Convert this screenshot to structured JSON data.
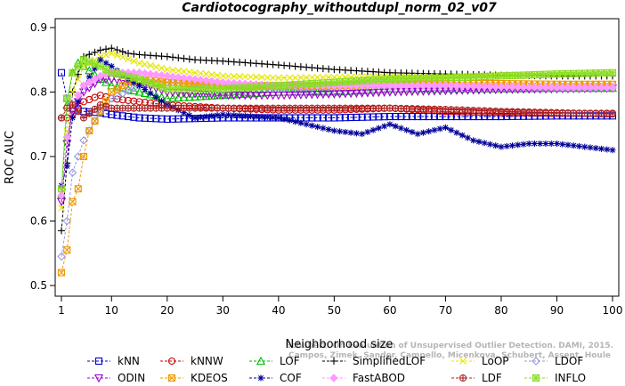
{
  "chart_data": {
    "type": "line",
    "title": "Cardiotocography_withoutdupl_norm_02_v07",
    "xlabel": "Neighborhood size",
    "ylabel": "ROC AUC",
    "xlim": [
      1,
      100
    ],
    "ylim": [
      0.5,
      0.9
    ],
    "xticks": [
      1,
      10,
      20,
      30,
      40,
      50,
      60,
      70,
      80,
      90,
      100
    ],
    "yticks": [
      0.5,
      0.6,
      0.7,
      0.8,
      0.9
    ],
    "grid": false,
    "legend_position": "bottom",
    "watermark": [
      "Schubert: On Evaluation of Unsupervised Outlier Detection. DAMI, 2015.",
      "Campos, Zimek, Sander, Campello, Micenkova, Schubert, Assent, Houle"
    ],
    "series": [
      {
        "name": "kNN",
        "color": "#0000cc",
        "marker": "square",
        "x": [
          1,
          2,
          3,
          5,
          8,
          10,
          15,
          20,
          30,
          40,
          50,
          60,
          70,
          80,
          90,
          100
        ],
        "y": [
          0.83,
          0.79,
          0.775,
          0.77,
          0.768,
          0.765,
          0.76,
          0.758,
          0.76,
          0.76,
          0.76,
          0.762,
          0.762,
          0.762,
          0.763,
          0.763
        ]
      },
      {
        "name": "kNNW",
        "color": "#cc0000",
        "marker": "circle",
        "x": [
          1,
          2,
          3,
          5,
          8,
          10,
          15,
          20,
          30,
          40,
          50,
          60,
          70,
          80,
          90,
          100
        ],
        "y": [
          0.76,
          0.76,
          0.765,
          0.785,
          0.795,
          0.79,
          0.785,
          0.78,
          0.775,
          0.772,
          0.772,
          0.775,
          0.77,
          0.768,
          0.767,
          0.767
        ]
      },
      {
        "name": "LOF",
        "color": "#00bb00",
        "marker": "triangle-up",
        "x": [
          1,
          2,
          3,
          4,
          5,
          8,
          10,
          15,
          20,
          30,
          40,
          50,
          60,
          70,
          80,
          90,
          100
        ],
        "y": [
          0.64,
          0.78,
          0.83,
          0.845,
          0.84,
          0.82,
          0.81,
          0.8,
          0.79,
          0.795,
          0.8,
          0.8,
          0.805,
          0.805,
          0.805,
          0.806,
          0.806
        ]
      },
      {
        "name": "SimplifiedLOF",
        "color": "#000000",
        "marker": "plus",
        "x": [
          1,
          2,
          3,
          5,
          8,
          10,
          13,
          15,
          20,
          25,
          30,
          40,
          50,
          60,
          70,
          80,
          90,
          100
        ],
        "y": [
          0.585,
          0.69,
          0.8,
          0.855,
          0.865,
          0.868,
          0.86,
          0.858,
          0.855,
          0.85,
          0.848,
          0.842,
          0.835,
          0.83,
          0.828,
          0.826,
          0.825,
          0.825
        ]
      },
      {
        "name": "LoOP",
        "color": "#e6e600",
        "marker": "x",
        "x": [
          1,
          2,
          3,
          5,
          8,
          10,
          15,
          20,
          30,
          40,
          50,
          60,
          70,
          80,
          90,
          100
        ],
        "y": [
          0.62,
          0.74,
          0.8,
          0.84,
          0.855,
          0.86,
          0.845,
          0.835,
          0.825,
          0.822,
          0.823,
          0.824,
          0.824,
          0.826,
          0.828,
          0.83
        ]
      },
      {
        "name": "LDOF",
        "color": "#9999dd",
        "marker": "diamond",
        "x": [
          1,
          2,
          3,
          5,
          8,
          10,
          15,
          20,
          30,
          40,
          50,
          60,
          70,
          80,
          90,
          100
        ],
        "y": [
          0.545,
          0.6,
          0.675,
          0.725,
          0.77,
          0.79,
          0.81,
          0.815,
          0.81,
          0.805,
          0.8,
          0.802,
          0.803,
          0.804,
          0.805,
          0.806
        ]
      },
      {
        "name": "ODIN",
        "color": "#9900cc",
        "marker": "triangle-down",
        "x": [
          1,
          2,
          3,
          5,
          8,
          10,
          15,
          20,
          30,
          40,
          50,
          60,
          70,
          80,
          90,
          100
        ],
        "y": [
          0.63,
          0.72,
          0.77,
          0.8,
          0.82,
          0.82,
          0.815,
          0.8,
          0.795,
          0.795,
          0.797,
          0.8,
          0.802,
          0.804,
          0.805,
          0.806
        ]
      },
      {
        "name": "KDEOS",
        "color": "#ee9900",
        "marker": "square-x",
        "x": [
          1,
          2,
          3,
          4,
          5,
          6,
          8,
          10,
          13,
          15,
          20,
          30,
          40,
          50,
          60,
          70,
          80,
          90,
          100
        ],
        "y": [
          0.52,
          0.555,
          0.63,
          0.65,
          0.7,
          0.74,
          0.77,
          0.8,
          0.815,
          0.82,
          0.815,
          0.81,
          0.81,
          0.81,
          0.812,
          0.813,
          0.813,
          0.812,
          0.812
        ]
      },
      {
        "name": "COF",
        "color": "#000099",
        "marker": "asterisk",
        "x": [
          1,
          2,
          3,
          5,
          8,
          10,
          13,
          15,
          20,
          25,
          30,
          40,
          45,
          50,
          55,
          60,
          65,
          70,
          75,
          80,
          85,
          90,
          95,
          100
        ],
        "y": [
          0.655,
          0.685,
          0.76,
          0.81,
          0.85,
          0.84,
          0.82,
          0.81,
          0.78,
          0.76,
          0.765,
          0.76,
          0.75,
          0.74,
          0.735,
          0.75,
          0.735,
          0.745,
          0.725,
          0.715,
          0.72,
          0.72,
          0.715,
          0.71
        ]
      },
      {
        "name": "FastABOD",
        "color": "#ff99ff",
        "marker": "diamond-filled",
        "x": [
          1,
          2,
          3,
          5,
          8,
          10,
          15,
          20,
          30,
          40,
          50,
          60,
          70,
          80,
          90,
          100
        ],
        "y": [
          0.64,
          0.73,
          0.78,
          0.81,
          0.825,
          0.83,
          0.83,
          0.825,
          0.815,
          0.81,
          0.81,
          0.81,
          0.81,
          0.808,
          0.807,
          0.807
        ]
      },
      {
        "name": "LDF",
        "color": "#aa2222",
        "marker": "circle-plus",
        "x": [
          1,
          2,
          3,
          5,
          8,
          10,
          15,
          20,
          30,
          40,
          50,
          60,
          70,
          80,
          90,
          100
        ],
        "y": [
          0.76,
          0.775,
          0.78,
          0.76,
          0.78,
          0.775,
          0.775,
          0.775,
          0.775,
          0.775,
          0.775,
          0.775,
          0.773,
          0.77,
          0.768,
          0.766
        ]
      },
      {
        "name": "INFLO",
        "color": "#88dd22",
        "marker": "square-star",
        "x": [
          1,
          2,
          3,
          5,
          8,
          10,
          15,
          20,
          30,
          40,
          50,
          60,
          70,
          80,
          90,
          100
        ],
        "y": [
          0.65,
          0.79,
          0.83,
          0.85,
          0.84,
          0.83,
          0.82,
          0.805,
          0.805,
          0.81,
          0.815,
          0.82,
          0.822,
          0.825,
          0.828,
          0.83
        ]
      }
    ]
  }
}
